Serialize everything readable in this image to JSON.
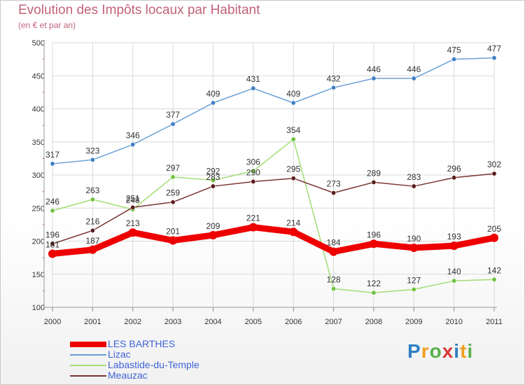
{
  "chart_data": {
    "type": "line",
    "title": "Evolution des Impôts locaux par Habitant",
    "subtitle": "(en € et par an)",
    "x": [
      "2000",
      "2001",
      "2002",
      "2003",
      "2004",
      "2005",
      "2006",
      "2007",
      "2008",
      "2009",
      "2010",
      "2011"
    ],
    "ylim": [
      100,
      500
    ],
    "yticks": [
      100,
      150,
      200,
      250,
      300,
      350,
      400,
      450,
      500
    ],
    "grid": true,
    "legend_position": "bottom-left",
    "series": [
      {
        "name": "Lizac",
        "color": "#6b9fd6",
        "marker": "#3f7fc4",
        "values": [
          317,
          323,
          346,
          377,
          409,
          431,
          409,
          432,
          446,
          446,
          475,
          477
        ]
      },
      {
        "name": "Labastide-du-Temple",
        "color": "#a3dd74",
        "marker": "#6fc23f",
        "values": [
          246,
          263,
          248,
          297,
          292,
          306,
          354,
          128,
          122,
          127,
          140,
          142
        ]
      },
      {
        "name": "Meauzac",
        "color": "#7a3434",
        "marker": "#5a1d1d",
        "values": [
          196,
          216,
          251,
          259,
          283,
          290,
          295,
          273,
          289,
          283,
          296,
          302
        ]
      },
      {
        "name": "LES BARTHES",
        "color": "#ee0000",
        "marker": "#ee0000",
        "values": [
          181,
          187,
          213,
          201,
          209,
          221,
          214,
          184,
          196,
          190,
          193,
          205
        ]
      }
    ],
    "legend_order": [
      "LES BARTHES",
      "Lizac",
      "Labastide-du-Temple",
      "Meauzac"
    ]
  },
  "logo_text": "Proxiti"
}
